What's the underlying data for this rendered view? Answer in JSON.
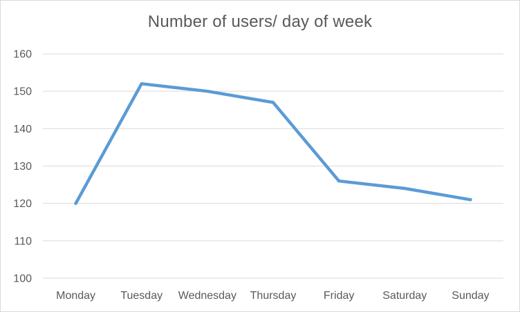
{
  "chart_data": {
    "type": "line",
    "title": "Number of users/ day of week",
    "xlabel": "",
    "ylabel": "",
    "categories": [
      "Monday",
      "Tuesday",
      "Wednesday",
      "Thursday",
      "Friday",
      "Saturday",
      "Sunday"
    ],
    "series": [
      {
        "values": [
          120,
          152,
          150,
          147,
          126,
          124,
          121
        ],
        "color": "#5b9bd5"
      }
    ],
    "ylim": [
      100,
      160
    ],
    "yticks": [
      100,
      110,
      120,
      130,
      140,
      150,
      160
    ],
    "grid": true,
    "legend": "none"
  }
}
